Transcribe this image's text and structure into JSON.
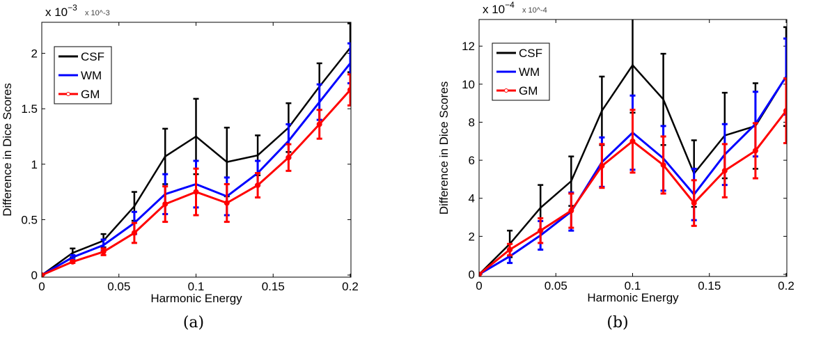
{
  "chart_data": [
    {
      "type": "line",
      "caption": "(a)",
      "xlabel": "Harmonic Energy",
      "ylabel": "Difference in Dice Scores",
      "y_multiplier": "x 10^-3",
      "y_multiplier_base": "x 10",
      "y_multiplier_exp": "−3",
      "xlim": [
        0,
        0.2
      ],
      "ylim": [
        0,
        2.28
      ],
      "xticks": [
        "0",
        "0.05",
        "0.1",
        "0.15",
        "0.2"
      ],
      "yticks": [
        "0",
        "0.5",
        "1",
        "1.5",
        "2"
      ],
      "legend_position": "upper-left",
      "grid": false,
      "x": [
        0,
        0.02,
        0.04,
        0.06,
        0.08,
        0.1,
        0.12,
        0.14,
        0.16,
        0.18,
        0.2
      ],
      "series": [
        {
          "name": "CSF",
          "color": "#000000",
          "marker": "none",
          "values": [
            0,
            0.2,
            0.31,
            0.62,
            1.07,
            1.25,
            1.02,
            1.08,
            1.33,
            1.7,
            2.05
          ],
          "errors": [
            0,
            0.04,
            0.06,
            0.13,
            0.25,
            0.34,
            0.31,
            0.18,
            0.22,
            0.21,
            0.22
          ]
        },
        {
          "name": "WM",
          "color": "#0000ff",
          "marker": "x",
          "values": [
            0,
            0.16,
            0.27,
            0.47,
            0.73,
            0.82,
            0.71,
            0.92,
            1.21,
            1.56,
            1.91
          ],
          "errors": [
            0,
            0.02,
            0.05,
            0.1,
            0.18,
            0.21,
            0.17,
            0.11,
            0.15,
            0.16,
            0.18
          ]
        },
        {
          "name": "GM",
          "color": "#ff0000",
          "marker": "o",
          "values": [
            0,
            0.12,
            0.21,
            0.38,
            0.64,
            0.75,
            0.65,
            0.81,
            1.06,
            1.36,
            1.67
          ],
          "errors": [
            0,
            0.01,
            0.03,
            0.09,
            0.16,
            0.21,
            0.17,
            0.11,
            0.12,
            0.13,
            0.14
          ]
        }
      ]
    },
    {
      "type": "line",
      "caption": "(b)",
      "xlabel": "Harmonic Energy",
      "ylabel": "Difference in Dice Scores",
      "y_multiplier": "x 10^-4",
      "y_multiplier_base": "x 10",
      "y_multiplier_exp": "−4",
      "xlim": [
        0,
        0.2
      ],
      "ylim": [
        0,
        13.4
      ],
      "xticks": [
        "0",
        "0.05",
        "0.1",
        "0.15",
        "0.2"
      ],
      "yticks": [
        "0",
        "2",
        "4",
        "6",
        "8",
        "10",
        "12"
      ],
      "legend_position": "upper-left",
      "grid": false,
      "x": [
        0,
        0.02,
        0.04,
        0.06,
        0.08,
        0.1,
        0.12,
        0.14,
        0.16,
        0.18,
        0.2
      ],
      "series": [
        {
          "name": "CSF",
          "color": "#000000",
          "marker": "none",
          "values": [
            0,
            1.6,
            3.5,
            4.9,
            8.6,
            11.0,
            9.2,
            5.3,
            7.3,
            7.8,
            10.4
          ],
          "errors": [
            0,
            0.7,
            1.2,
            1.3,
            1.8,
            2.5,
            2.4,
            1.75,
            2.25,
            2.25,
            2.6
          ]
        },
        {
          "name": "WM",
          "color": "#0000ff",
          "marker": "x",
          "values": [
            0,
            0.95,
            2.05,
            3.3,
            5.9,
            7.45,
            6.1,
            4.2,
            6.3,
            7.9,
            10.4
          ],
          "errors": [
            0,
            0.35,
            0.75,
            1.0,
            1.3,
            1.95,
            1.7,
            1.35,
            1.6,
            1.7,
            2.0
          ]
        },
        {
          "name": "GM",
          "color": "#ff0000",
          "marker": "o",
          "values": [
            0,
            1.3,
            2.3,
            3.35,
            5.7,
            7.0,
            5.75,
            3.75,
            5.45,
            6.5,
            8.6
          ],
          "errors": [
            0,
            0.3,
            0.65,
            0.9,
            1.15,
            1.65,
            1.5,
            1.2,
            1.4,
            1.45,
            1.7
          ]
        }
      ]
    }
  ]
}
